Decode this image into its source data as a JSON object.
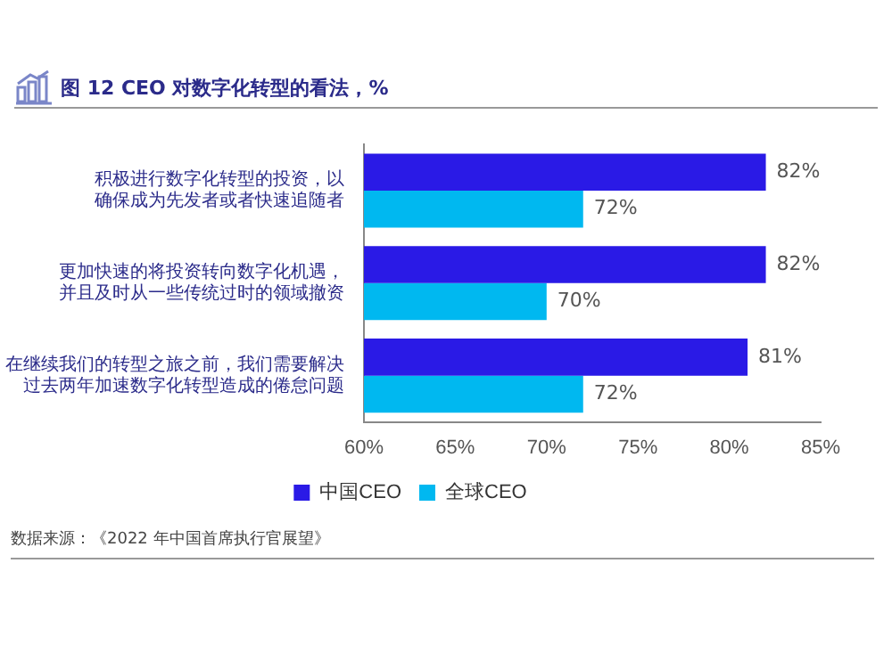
{
  "chart_data": {
    "type": "bar",
    "orientation": "horizontal",
    "title": "图 12  CEO 对数字化转型的看法，%",
    "categories": [
      "积极进行数字化转型的投资，以确保成为先发者或者快速追随者",
      "更加快速的将投资转向数字化机遇，并且及时从一些传统过时的领域撤资",
      "在继续我们的转型之旅之前，我们需要解决过去两年加速数字化转型造成的倦怠问题"
    ],
    "series": [
      {
        "name": "中国CEO",
        "color": "#2a1ae6",
        "values": [
          82,
          82,
          81
        ],
        "value_labels": [
          "82%",
          "82%",
          "81%"
        ]
      },
      {
        "name": "全球CEO",
        "color": "#00b8f0",
        "values": [
          72,
          70,
          72
        ],
        "value_labels": [
          "72%",
          "70%",
          "72%"
        ]
      }
    ],
    "xlim": [
      60,
      85
    ],
    "xticks": [
      {
        "value": 60,
        "label": "60%"
      },
      {
        "value": 65,
        "label": "65%"
      },
      {
        "value": 70,
        "label": "70%"
      },
      {
        "value": 75,
        "label": "75%"
      },
      {
        "value": 80,
        "label": "80%"
      },
      {
        "value": 85,
        "label": "85%"
      }
    ],
    "legend": "bottom",
    "grid": false,
    "annotations": [
      "数据来源：《2022 年中国首席执行官展望》"
    ]
  }
}
